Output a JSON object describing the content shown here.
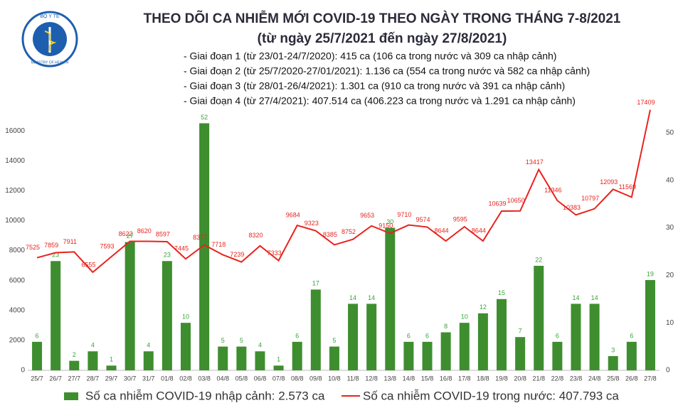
{
  "chart_data": {
    "type": "combo",
    "logo_text": [
      "BỘ Y TẾ",
      "MINISTRY OF HEALTH"
    ],
    "title": "THEO DÕI CA NHIỄM MỚI COVID-19 THEO NGÀY TRONG THÁNG 7-8/2021",
    "subtitle": "(từ ngày 25/7/2021 đến ngày 27/8/2021)",
    "annotations": [
      "- Giai đoạn 1 (từ 23/01-24/7/2020): 415 ca (106 ca trong nước và 309 ca nhập cảnh)",
      "- Giai đoạn 2 (từ 25/7/2020-27/01/2021): 1.136 ca (554 ca trong nước và 582 ca nhập cảnh)",
      "- Giai đoạn 3 (từ 28/01-26/4/2021): 1.301 ca (910 ca trong nước và 391 ca nhập cảnh)",
      "- Giai đoạn 4 (từ 27/4/2021): 407.514 ca (406.223 ca trong nước và 1.291 ca nhập cảnh)"
    ],
    "categories": [
      "25/7",
      "26/7",
      "27/7",
      "28/7",
      "29/7",
      "30/7",
      "31/7",
      "01/8",
      "02/8",
      "03/8",
      "04/8",
      "05/8",
      "06/8",
      "07/8",
      "08/8",
      "09/8",
      "10/8",
      "11/8",
      "12/8",
      "13/8",
      "14/8",
      "15/8",
      "16/8",
      "17/8",
      "18/8",
      "19/8",
      "20/8",
      "21/8",
      "22/8",
      "23/8",
      "24/8",
      "25/8",
      "26/8",
      "27/8"
    ],
    "series": [
      {
        "name": "Số ca nhiễm COVID-19 nhập cảnh: 2.573 ca",
        "type": "bar",
        "axis": "y2",
        "color": "#3e8e2f",
        "label_color": "#3aa53a",
        "values": [
          6,
          23,
          2,
          4,
          1,
          27,
          4,
          23,
          10,
          52,
          5,
          5,
          4,
          1,
          6,
          17,
          5,
          14,
          14,
          30,
          6,
          6,
          8,
          10,
          12,
          15,
          7,
          22,
          6,
          14,
          14,
          3,
          6,
          19
        ]
      },
      {
        "name": "Số ca nhiễm COVID-19 trong nước: 407.793 ca",
        "type": "line",
        "color": "#e8231d",
        "label_color": "#e8231d",
        "values": [
          7525,
          7859,
          7911,
          6555,
          7593,
          8622,
          8620,
          8597,
          7445,
          8377,
          7718,
          7239,
          8320,
          7333,
          9684,
          9323,
          8385,
          8752,
          9653,
          9150,
          9710,
          9574,
          8644,
          9595,
          8644,
          10639,
          10650,
          13417,
          11346,
          10383,
          10797,
          12093,
          11569,
          17409
        ]
      }
    ],
    "ylim": [
      0,
      18000
    ],
    "yticks": [
      0,
      2000,
      4000,
      6000,
      8000,
      10000,
      12000,
      14000,
      16000
    ],
    "y2lim": [
      0,
      56.7
    ],
    "y2ticks": [
      0,
      10,
      20,
      30,
      40,
      50
    ],
    "grid": false
  }
}
